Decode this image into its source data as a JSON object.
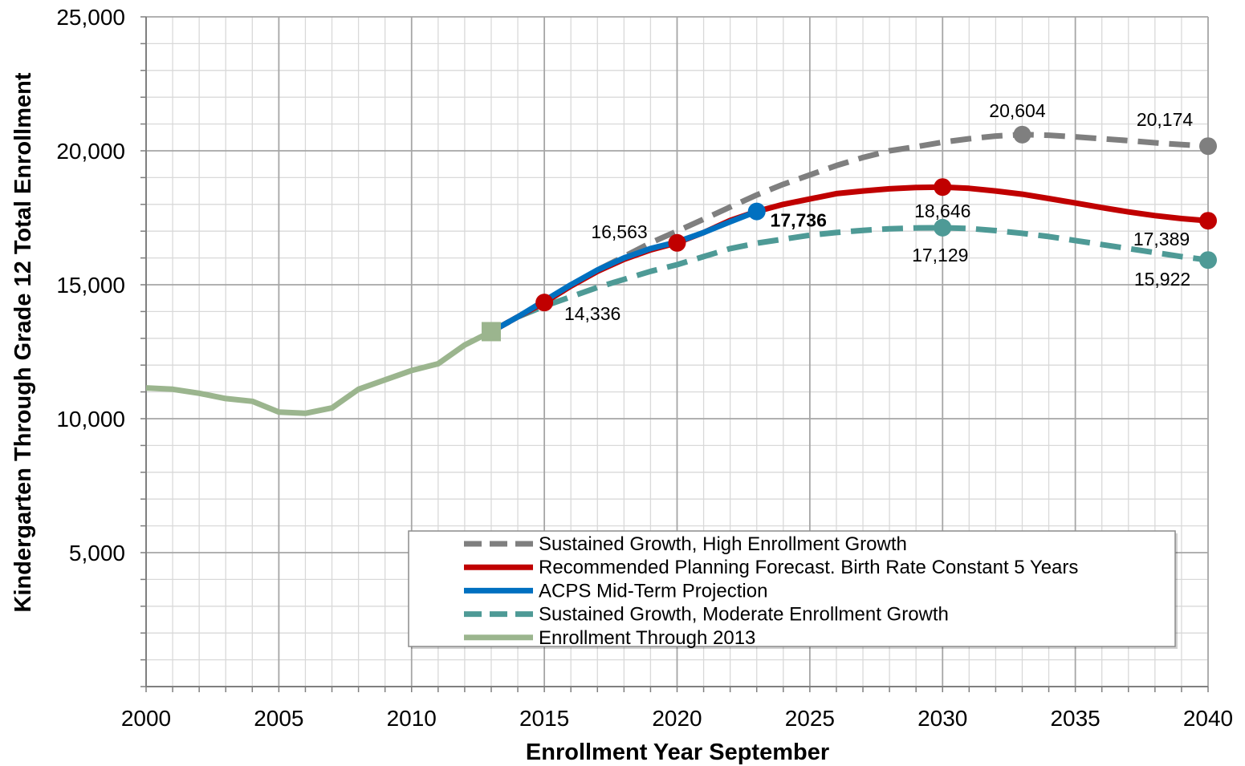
{
  "chart_data": {
    "type": "line",
    "title": "",
    "xlabel": "Enrollment Year September",
    "ylabel": "Kindergarten Through Grade 12 Total Enrollment",
    "xlim": [
      2000,
      2040
    ],
    "ylim": [
      0,
      25000
    ],
    "x_ticks": [
      "2000",
      "2005",
      "2010",
      "2015",
      "2020",
      "2025",
      "2030",
      "2035",
      "2040"
    ],
    "y_ticks": [
      "5,000",
      "10,000",
      "15,000",
      "20,000",
      "25,000"
    ],
    "grid": true,
    "legend_position": "bottom-center",
    "series": [
      {
        "name": "Sustained Growth, High Enrollment Growth",
        "color": "#7f7f7f",
        "style": "dashed",
        "x": [
          2013,
          2014,
          2015,
          2016,
          2017,
          2018,
          2019,
          2020,
          2021,
          2022,
          2023,
          2024,
          2025,
          2026,
          2027,
          2028,
          2029,
          2030,
          2031,
          2032,
          2033,
          2034,
          2035,
          2036,
          2037,
          2038,
          2039,
          2040
        ],
        "y": [
          13250,
          13800,
          14336,
          14950,
          15550,
          16050,
          16563,
          17000,
          17450,
          17900,
          18350,
          18750,
          19100,
          19450,
          19750,
          20000,
          20150,
          20320,
          20450,
          20550,
          20604,
          20580,
          20520,
          20450,
          20380,
          20300,
          20230,
          20174
        ],
        "markers": [
          {
            "x": 2033,
            "y": 20604
          },
          {
            "x": 2040,
            "y": 20174
          }
        ]
      },
      {
        "name": "Recommended Planning Forecast. Birth Rate Constant 5 Years",
        "color": "#c00000",
        "style": "solid",
        "x": [
          2013,
          2014,
          2015,
          2016,
          2017,
          2018,
          2019,
          2020,
          2021,
          2022,
          2023,
          2024,
          2025,
          2026,
          2027,
          2028,
          2029,
          2030,
          2031,
          2032,
          2033,
          2034,
          2035,
          2036,
          2037,
          2038,
          2039,
          2040
        ],
        "y": [
          13250,
          13800,
          14336,
          14950,
          15500,
          15950,
          16300,
          16563,
          16950,
          17400,
          17736,
          18000,
          18200,
          18400,
          18500,
          18580,
          18630,
          18646,
          18600,
          18500,
          18380,
          18220,
          18050,
          17880,
          17720,
          17580,
          17470,
          17389
        ],
        "markers": [
          {
            "x": 2015,
            "y": 14336
          },
          {
            "x": 2020,
            "y": 16563
          },
          {
            "x": 2030,
            "y": 18646
          },
          {
            "x": 2040,
            "y": 17389
          }
        ]
      },
      {
        "name": "ACPS Mid-Term Projection",
        "color": "#0070c0",
        "style": "solid",
        "x": [
          2013,
          2014,
          2015,
          2016,
          2017,
          2018,
          2019,
          2020,
          2021,
          2022,
          2023
        ],
        "y": [
          13250,
          13800,
          14400,
          15000,
          15550,
          16000,
          16350,
          16600,
          16950,
          17350,
          17736
        ],
        "markers": [
          {
            "x": 2023,
            "y": 17736
          }
        ]
      },
      {
        "name": "Sustained Growth, Moderate Enrollment Growth",
        "color": "#4e9a96",
        "style": "dashed",
        "x": [
          2013,
          2014,
          2015,
          2016,
          2017,
          2018,
          2019,
          2020,
          2021,
          2022,
          2023,
          2024,
          2025,
          2026,
          2027,
          2028,
          2029,
          2030,
          2031,
          2032,
          2033,
          2034,
          2035,
          2036,
          2037,
          2038,
          2039,
          2040
        ],
        "y": [
          13250,
          13800,
          14200,
          14550,
          14900,
          15200,
          15500,
          15750,
          16050,
          16350,
          16550,
          16700,
          16850,
          16950,
          17030,
          17090,
          17120,
          17129,
          17100,
          17020,
          16920,
          16800,
          16650,
          16500,
          16350,
          16200,
          16050,
          15922
        ],
        "markers": [
          {
            "x": 2030,
            "y": 17129
          },
          {
            "x": 2040,
            "y": 15922
          }
        ]
      },
      {
        "name": "Enrollment Through 2013",
        "color": "#9bb58e",
        "style": "solid",
        "x": [
          2000,
          2001,
          2002,
          2003,
          2004,
          2005,
          2006,
          2007,
          2008,
          2009,
          2010,
          2011,
          2012,
          2013
        ],
        "y": [
          11150,
          11100,
          10950,
          10750,
          10650,
          10250,
          10200,
          10400,
          11100,
          11450,
          11800,
          12050,
          12750,
          13250
        ],
        "markers": [
          {
            "x": 2013,
            "y": 13250
          }
        ]
      }
    ],
    "annotations": [
      {
        "text": "20,604",
        "x": 2033,
        "y": 20604
      },
      {
        "text": "20,174",
        "x": 2040,
        "y": 20174
      },
      {
        "text": "16,563",
        "x": 2020,
        "y": 16563
      },
      {
        "text": "17,736",
        "x": 2023,
        "y": 17736
      },
      {
        "text": "18,646",
        "x": 2030,
        "y": 18646
      },
      {
        "text": "17,389",
        "x": 2040,
        "y": 17389
      },
      {
        "text": "17,129",
        "x": 2030,
        "y": 17129
      },
      {
        "text": "15,922",
        "x": 2040,
        "y": 15922
      },
      {
        "text": "14,336",
        "x": 2015,
        "y": 14336
      }
    ]
  }
}
